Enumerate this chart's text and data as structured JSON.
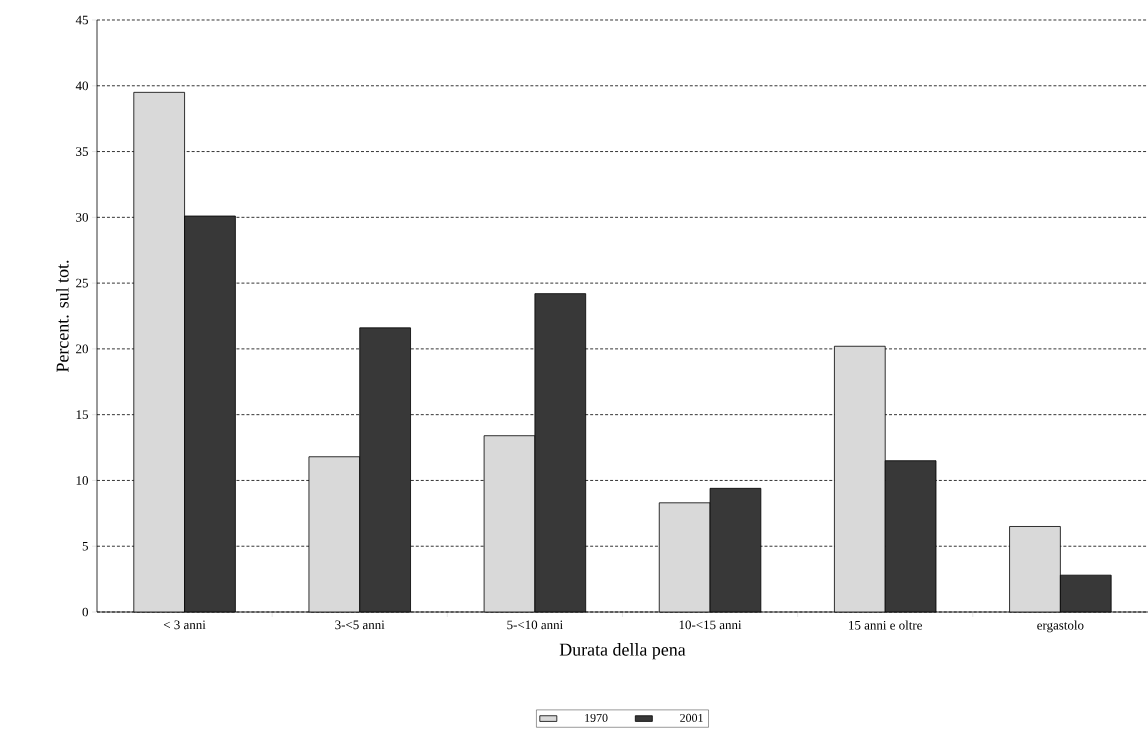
{
  "chart_data": {
    "type": "bar",
    "xlabel": "Durata della pena",
    "ylabel": "Percent. sul tot.",
    "categories": [
      "< 3 anni",
      "3-<5 anni",
      "5-<10 anni",
      "10-<15 anni",
      "15 anni e oltre",
      "ergastolo"
    ],
    "series": [
      {
        "name": "1970",
        "color": "#d9d9d9",
        "values": [
          39.5,
          11.8,
          13.4,
          8.3,
          20.2,
          6.5
        ]
      },
      {
        "name": "2001",
        "color": "#383838",
        "values": [
          30.1,
          21.6,
          24.2,
          9.4,
          11.5,
          2.8
        ]
      }
    ],
    "ylim": [
      0,
      45
    ],
    "yticks": [
      0,
      5,
      10,
      15,
      20,
      25,
      30,
      35,
      40,
      45
    ],
    "grid": "y",
    "legend": "bottom"
  }
}
